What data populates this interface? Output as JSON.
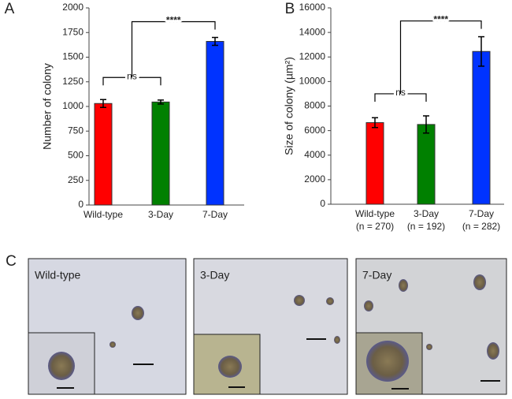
{
  "chart_data": [
    {
      "type": "bar",
      "panel_label": "A",
      "ylabel": "Number of colony",
      "categories": [
        "Wild-type",
        "3-Day",
        "7-Day"
      ],
      "values": [
        1030,
        1045,
        1660
      ],
      "errors": [
        40,
        20,
        40
      ],
      "colors": [
        "#ff0000",
        "#008000",
        "#0033ff"
      ],
      "ylim": [
        0,
        2000
      ],
      "yticks": [
        0,
        250,
        500,
        750,
        1000,
        1250,
        1500,
        1750,
        2000
      ],
      "annotations": [
        {
          "text": "ns"
        },
        {
          "text": "****"
        }
      ]
    },
    {
      "type": "bar",
      "panel_label": "B",
      "ylabel": "Size of colony (µm²)",
      "categories": [
        "Wild-type",
        "3-Day",
        "7-Day"
      ],
      "sublabels": [
        "(n = 270)",
        "(n = 192)",
        "(n = 282)"
      ],
      "values": [
        6650,
        6500,
        12450
      ],
      "errors": [
        400,
        700,
        1200
      ],
      "colors": [
        "#ff0000",
        "#008000",
        "#0033ff"
      ],
      "ylim": [
        0,
        16000
      ],
      "yticks": [
        0,
        2000,
        4000,
        6000,
        8000,
        10000,
        12000,
        14000,
        16000
      ],
      "annotations": [
        {
          "text": "ns"
        },
        {
          "text": "****"
        }
      ]
    }
  ],
  "images": {
    "panel_label": "C",
    "labels": [
      "Wild-type",
      "3-Day",
      "7-Day"
    ]
  }
}
